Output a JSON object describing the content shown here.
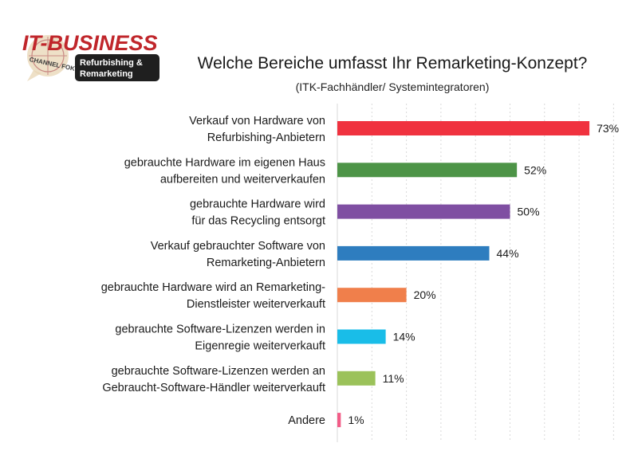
{
  "logo": {
    "name": "IT-BUSINESS",
    "ring_text": "CHANNEL FOKUS",
    "badge_line1": "Refurbishing &",
    "badge_line2": "Remarketing",
    "brand_color": "#c0262b"
  },
  "chart_data": {
    "type": "bar",
    "orientation": "horizontal",
    "title": "Welche Bereiche umfasst Ihr Remarketing-Konzept?",
    "subtitle": "(ITK-Fachhändler/ Systemintegratoren)",
    "xlim": [
      0,
      100
    ],
    "grid": true,
    "categories": [
      [
        "Verkauf von Hardware von",
        "Refurbishing-Anbietern"
      ],
      [
        "gebrauchte Hardware im eigenen Haus",
        "aufbereiten und weiterverkaufen"
      ],
      [
        "gebrauchte Hardware wird",
        "für das Recycling entsorgt"
      ],
      [
        "Verkauf gebrauchter Software von",
        "Remarketing-Anbietern"
      ],
      [
        "gebrauchte Hardware wird an Remarketing-",
        "Dienstleister weiterverkauft"
      ],
      [
        "gebrauchte Software-Lizenzen werden in",
        "Eigenregie weiterverkauft"
      ],
      [
        "gebrauchte Software-Lizenzen werden an",
        "Gebraucht-Software-Händler weiterverkauft"
      ],
      [
        "Andere"
      ]
    ],
    "values": [
      73,
      52,
      50,
      44,
      20,
      14,
      11,
      1
    ],
    "value_labels": [
      "73%",
      "52%",
      "50%",
      "44%",
      "20%",
      "14%",
      "11%",
      "1%"
    ],
    "colors": [
      "#f0323f",
      "#4d9447",
      "#7f4fa2",
      "#2e7dbf",
      "#f07f4b",
      "#19bde8",
      "#9bc25a",
      "#f25c87"
    ]
  }
}
